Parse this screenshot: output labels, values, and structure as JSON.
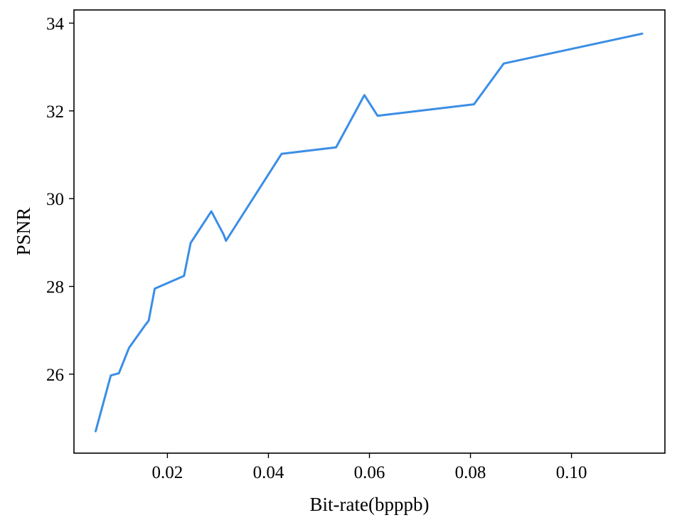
{
  "chart_data": {
    "type": "line",
    "title": "",
    "xlabel": "Bit-rate(bpppb)",
    "ylabel": "PSNR",
    "xlim": [
      0.0015,
      0.1185
    ],
    "ylim": [
      24.2,
      34.3
    ],
    "xticks": [
      0.02,
      0.04,
      0.06,
      0.08,
      0.1
    ],
    "xtick_labels": [
      "0.02",
      "0.04",
      "0.06",
      "0.08",
      "0.10"
    ],
    "yticks": [
      26,
      28,
      30,
      32,
      34
    ],
    "ytick_labels": [
      "26",
      "28",
      "30",
      "32",
      "34"
    ],
    "grid": false,
    "legend": false,
    "series": [
      {
        "color": "#3a8ee6",
        "x": [
          0.0058,
          0.0088,
          0.0104,
          0.0124,
          0.0155,
          0.0163,
          0.0175,
          0.0233,
          0.0246,
          0.0287,
          0.0311,
          0.0316,
          0.0426,
          0.0534,
          0.059,
          0.0616,
          0.0807,
          0.0866,
          0.114
        ],
        "y": [
          24.7,
          25.97,
          26.02,
          26.6,
          27.1,
          27.22,
          27.95,
          28.24,
          28.99,
          29.71,
          29.19,
          29.04,
          31.02,
          31.17,
          32.36,
          31.89,
          32.15,
          33.08,
          33.76
        ]
      }
    ]
  }
}
